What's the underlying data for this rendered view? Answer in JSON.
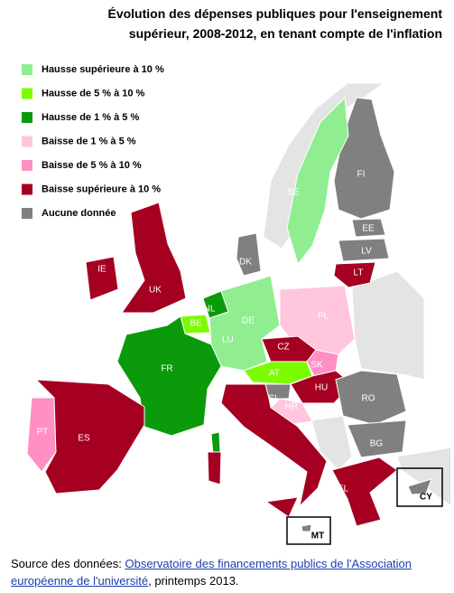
{
  "title": [
    "Évolution des dépenses publiques pour l'enseignement",
    "supérieur, 2008-2012, en tenant compte de l'inflation"
  ],
  "legend": [
    {
      "label": "Hausse supérieure à 10 %",
      "color": "#90ee90"
    },
    {
      "label": "Hausse de 5 % à 10 %",
      "color": "#7cfc00"
    },
    {
      "label": "Hausse de 1 % à 5 %",
      "color": "#0a9a0a"
    },
    {
      "label": "Baisse de 1 % à 5 %",
      "color": "#ffc6de"
    },
    {
      "label": "Baisse de 5 % à 10 %",
      "color": "#ff8fc4"
    },
    {
      "label": "Baisse supérieure à 10 %",
      "color": "#a50021"
    },
    {
      "label": "Aucune donnée",
      "color": "#808080"
    }
  ],
  "countries": [
    {
      "code": "FI",
      "color": "#808080"
    },
    {
      "code": "SE",
      "color": "#90ee90"
    },
    {
      "code": "EE",
      "color": "#808080"
    },
    {
      "code": "LV",
      "color": "#808080"
    },
    {
      "code": "LT",
      "color": "#a50021"
    },
    {
      "code": "DK",
      "color": "#808080"
    },
    {
      "code": "IE",
      "color": "#a50021"
    },
    {
      "code": "UK",
      "color": "#a50021"
    },
    {
      "code": "NL",
      "color": "#0a9a0a"
    },
    {
      "code": "BE",
      "color": "#7cfc00"
    },
    {
      "code": "LU",
      "color": "#90ee90"
    },
    {
      "code": "DE",
      "color": "#90ee90"
    },
    {
      "code": "PL",
      "color": "#ffc6de"
    },
    {
      "code": "CZ",
      "color": "#a50021"
    },
    {
      "code": "SK",
      "color": "#ff8fc4"
    },
    {
      "code": "AT",
      "color": "#7cfc00"
    },
    {
      "code": "HU",
      "color": "#a50021"
    },
    {
      "code": "FR",
      "color": "#0a9a0a"
    },
    {
      "code": "SI",
      "color": "#808080"
    },
    {
      "code": "HR",
      "color": "#ffc6de"
    },
    {
      "code": "RO",
      "color": "#808080"
    },
    {
      "code": "PT",
      "color": "#ff8fc4"
    },
    {
      "code": "ES",
      "color": "#a50021"
    },
    {
      "code": "IT",
      "color": "#a50021"
    },
    {
      "code": "BG",
      "color": "#808080"
    },
    {
      "code": "EL",
      "color": "#a50021"
    },
    {
      "code": "CY",
      "color": "#808080"
    },
    {
      "code": "MT",
      "color": "#808080"
    }
  ],
  "source": {
    "prefix": "Source des données: ",
    "link": "Observatoire des financements publics de l'Association européenne de l'université",
    "suffix": ", printemps 2013."
  }
}
